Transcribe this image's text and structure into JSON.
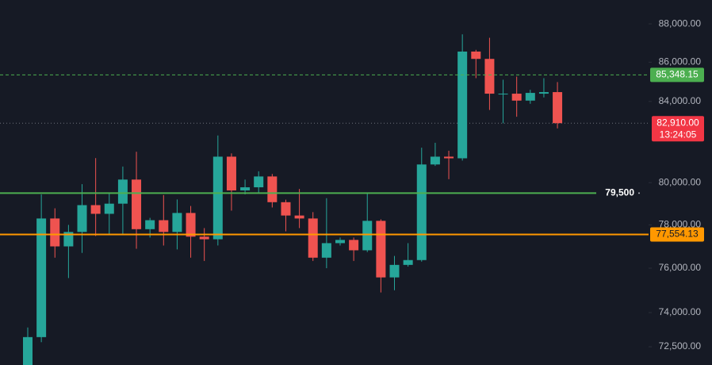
{
  "chart_data": {
    "type": "candlestick",
    "log_scale": true,
    "categories": [
      null,
      null,
      null,
      null,
      null,
      null,
      null,
      null,
      null,
      null,
      null,
      null,
      null,
      null,
      null,
      null,
      null,
      null,
      null,
      null,
      null,
      null,
      null,
      null,
      null,
      null,
      null,
      null,
      null,
      null,
      null,
      null,
      null,
      null,
      null,
      null,
      null,
      null,
      null,
      null
    ],
    "up_color": "#26a69a",
    "down_color": "#ef5350",
    "open": [
      71500,
      72920,
      78300,
      77000,
      77670,
      78930,
      78520,
      79000,
      80150,
      77800,
      78220,
      77670,
      78560,
      77450,
      77330,
      81260,
      79630,
      79780,
      80300,
      79070,
      78440,
      78300,
      76480,
      77150,
      77300,
      76820,
      78190,
      75580,
      76150,
      76370,
      80880,
      81260,
      81180,
      86550,
      86170,
      84350,
      84390,
      84040,
      84390,
      84470
    ],
    "high": [
      73340,
      79440,
      78780,
      78000,
      79930,
      81190,
      79520,
      80780,
      81500,
      78330,
      79410,
      79200,
      78890,
      77850,
      82300,
      81420,
      80150,
      80550,
      80420,
      79190,
      79700,
      78600,
      79260,
      77410,
      77410,
      79520,
      78260,
      76560,
      77150,
      81700,
      81940,
      81550,
      87450,
      86640,
      87270,
      85100,
      85260,
      84590,
      85180,
      84980
    ],
    "low": [
      71000,
      72700,
      76480,
      75550,
      76700,
      77480,
      77520,
      77560,
      76890,
      77410,
      77040,
      76860,
      76480,
      76330,
      77040,
      78670,
      79440,
      79480,
      78820,
      77700,
      77850,
      76330,
      76000,
      77040,
      76330,
      76740,
      74900,
      75000,
      76070,
      76300,
      80810,
      80170,
      81070,
      85180,
      83570,
      82900,
      83230,
      83880,
      84200,
      82650
    ],
    "close": [
      72920,
      78300,
      77000,
      77670,
      78930,
      78520,
      79000,
      80150,
      77800,
      78220,
      77670,
      78560,
      77450,
      77330,
      81260,
      79630,
      79780,
      80300,
      79070,
      78440,
      78300,
      76480,
      77150,
      77300,
      76820,
      78190,
      75580,
      76150,
      76370,
      80880,
      81260,
      81180,
      86550,
      86170,
      84390,
      84390,
      84040,
      84430,
      84470,
      82910
    ],
    "ylim": [
      71710,
      89270
    ],
    "yticks": [
      {
        "value": 88000,
        "label": "88,000.00"
      },
      {
        "value": 86000,
        "label": "86,000.00"
      },
      {
        "value": 84000,
        "label": "84,000.00"
      },
      {
        "value": 80000,
        "label": "80,000.00"
      },
      {
        "value": 78000,
        "label": "78,000.00"
      },
      {
        "value": 76000,
        "label": "76,000.00"
      },
      {
        "value": 74000,
        "label": "74,000.00"
      },
      {
        "value": 72500,
        "label": "72,500.00"
      }
    ],
    "levels": [
      {
        "value": 85348.15,
        "label": "85,348.15",
        "color": "#4caf50",
        "style": "dashed"
      },
      {
        "value": 79500,
        "label": "79,500",
        "color": "#4caf50",
        "style": "solid"
      },
      {
        "value": 77554.13,
        "label": "77,554.13",
        "color": "#ff9800",
        "style": "solid"
      }
    ],
    "last_price": {
      "value": 82910,
      "label": "82,910.00",
      "countdown": "13:24:05",
      "color": "#f23645"
    }
  }
}
